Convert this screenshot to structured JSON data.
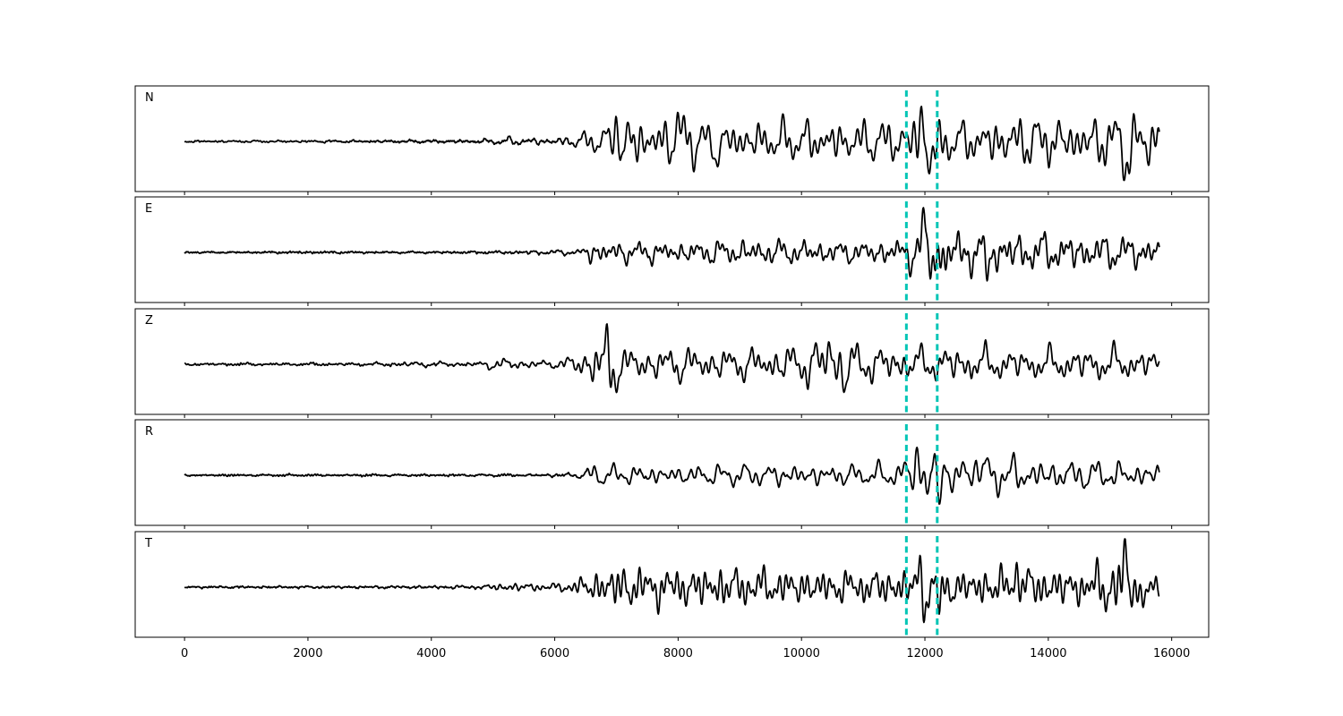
{
  "chart_data": {
    "type": "line",
    "layout": "stacked-panels",
    "xlim": [
      -800,
      16600
    ],
    "xticks": [
      0,
      2000,
      4000,
      6000,
      8000,
      10000,
      12000,
      14000,
      16000
    ],
    "x_range": [
      0,
      15800
    ],
    "picks": [
      11700,
      12200
    ],
    "pick_color": "#00c5b5",
    "line_color": "#000000",
    "series": [
      {
        "label": "N",
        "amplitude": 0.72,
        "noise": 0.02,
        "onset": 6300,
        "envelope": [
          [
            0,
            0.025
          ],
          [
            3500,
            0.035
          ],
          [
            4800,
            0.05
          ],
          [
            5200,
            0.12
          ],
          [
            6000,
            0.1
          ],
          [
            6300,
            0.2
          ],
          [
            6900,
            0.45
          ],
          [
            7100,
            0.85
          ],
          [
            7600,
            0.6
          ],
          [
            8000,
            0.85
          ],
          [
            8500,
            0.55
          ],
          [
            9500,
            0.6
          ],
          [
            11000,
            0.6
          ],
          [
            11700,
            0.6
          ],
          [
            11900,
            0.95
          ],
          [
            12200,
            0.9
          ],
          [
            12500,
            0.55
          ],
          [
            13500,
            0.75
          ],
          [
            14500,
            0.65
          ],
          [
            15200,
            0.9
          ],
          [
            15800,
            0.75
          ]
        ],
        "sample": [
          [
            7000,
            0.72
          ],
          [
            7100,
            -0.45
          ],
          [
            8000,
            0.65
          ],
          [
            8600,
            -0.55
          ],
          [
            11950,
            0.9
          ],
          [
            12050,
            -0.75
          ],
          [
            12200,
            -0.7
          ],
          [
            15300,
            -0.8
          ]
        ]
      },
      {
        "label": "E",
        "amplitude": 0.72,
        "noise": 0.02,
        "onset": 6400,
        "envelope": [
          [
            0,
            0.02
          ],
          [
            5000,
            0.03
          ],
          [
            5500,
            0.06
          ],
          [
            6400,
            0.08
          ],
          [
            6600,
            0.35
          ],
          [
            7000,
            0.32
          ],
          [
            8000,
            0.3
          ],
          [
            9000,
            0.38
          ],
          [
            10000,
            0.35
          ],
          [
            11000,
            0.3
          ],
          [
            11600,
            0.4
          ],
          [
            11800,
            0.55
          ],
          [
            12000,
            0.95
          ],
          [
            12200,
            0.95
          ],
          [
            12500,
            0.65
          ],
          [
            13100,
            0.6
          ],
          [
            14000,
            0.55
          ],
          [
            15000,
            0.5
          ],
          [
            15800,
            0.45
          ]
        ],
        "sample": [
          [
            12000,
            0.88
          ],
          [
            12100,
            -0.72
          ],
          [
            12200,
            0.85
          ],
          [
            12250,
            -0.9
          ],
          [
            13000,
            -0.6
          ]
        ]
      },
      {
        "label": "Z",
        "amplitude": 0.72,
        "noise": 0.02,
        "onset": 6400,
        "envelope": [
          [
            0,
            0.03
          ],
          [
            3000,
            0.04
          ],
          [
            3600,
            0.08
          ],
          [
            4800,
            0.06
          ],
          [
            5000,
            0.18
          ],
          [
            5300,
            0.15
          ],
          [
            6000,
            0.1
          ],
          [
            6400,
            0.35
          ],
          [
            6700,
            0.75
          ],
          [
            6900,
            0.85
          ],
          [
            7200,
            0.45
          ],
          [
            8000,
            0.5
          ],
          [
            9000,
            0.45
          ],
          [
            9800,
            0.55
          ],
          [
            10500,
            0.75
          ],
          [
            11000,
            0.55
          ],
          [
            11700,
            0.5
          ],
          [
            12200,
            0.5
          ],
          [
            12400,
            0.55
          ],
          [
            13500,
            0.45
          ],
          [
            15000,
            0.5
          ],
          [
            15800,
            0.4
          ]
        ],
        "sample": [
          [
            6850,
            0.7
          ],
          [
            6900,
            -0.75
          ],
          [
            10450,
            0.6
          ],
          [
            10700,
            -0.55
          ]
        ]
      },
      {
        "label": "R",
        "amplitude": 0.72,
        "noise": 0.02,
        "onset": 6400,
        "envelope": [
          [
            0,
            0.02
          ],
          [
            5500,
            0.03
          ],
          [
            6400,
            0.08
          ],
          [
            6600,
            0.3
          ],
          [
            7000,
            0.3
          ],
          [
            8000,
            0.28
          ],
          [
            9000,
            0.3
          ],
          [
            10000,
            0.35
          ],
          [
            11000,
            0.3
          ],
          [
            11500,
            0.35
          ],
          [
            11700,
            0.55
          ],
          [
            11900,
            0.8
          ],
          [
            12150,
            0.95
          ],
          [
            12300,
            0.8
          ],
          [
            12500,
            0.5
          ],
          [
            13200,
            0.6
          ],
          [
            14000,
            0.45
          ],
          [
            15000,
            0.4
          ],
          [
            15800,
            0.35
          ]
        ],
        "sample": [
          [
            11850,
            0.8
          ],
          [
            12050,
            -0.75
          ],
          [
            12150,
            0.9
          ],
          [
            12200,
            -0.85
          ],
          [
            12850,
            0.7
          ]
        ]
      },
      {
        "label": "T",
        "amplitude": 0.72,
        "noise": 0.02,
        "onset": 6300,
        "envelope": [
          [
            0,
            0.025
          ],
          [
            3500,
            0.035
          ],
          [
            4800,
            0.05
          ],
          [
            5200,
            0.12
          ],
          [
            6000,
            0.1
          ],
          [
            6300,
            0.2
          ],
          [
            6700,
            0.45
          ],
          [
            7000,
            0.65
          ],
          [
            7500,
            0.55
          ],
          [
            8000,
            0.55
          ],
          [
            8700,
            0.6
          ],
          [
            9500,
            0.5
          ],
          [
            11000,
            0.45
          ],
          [
            11700,
            0.55
          ],
          [
            12000,
            0.8
          ],
          [
            12200,
            0.75
          ],
          [
            12500,
            0.45
          ],
          [
            13500,
            0.6
          ],
          [
            14500,
            0.5
          ],
          [
            15200,
            0.9
          ],
          [
            15500,
            0.6
          ],
          [
            15800,
            0.35
          ]
        ],
        "sample": [
          [
            11950,
            0.75
          ],
          [
            12000,
            -0.75
          ],
          [
            12250,
            -0.72
          ],
          [
            13500,
            0.65
          ],
          [
            15250,
            0.88
          ],
          [
            15500,
            -0.55
          ]
        ]
      }
    ]
  }
}
